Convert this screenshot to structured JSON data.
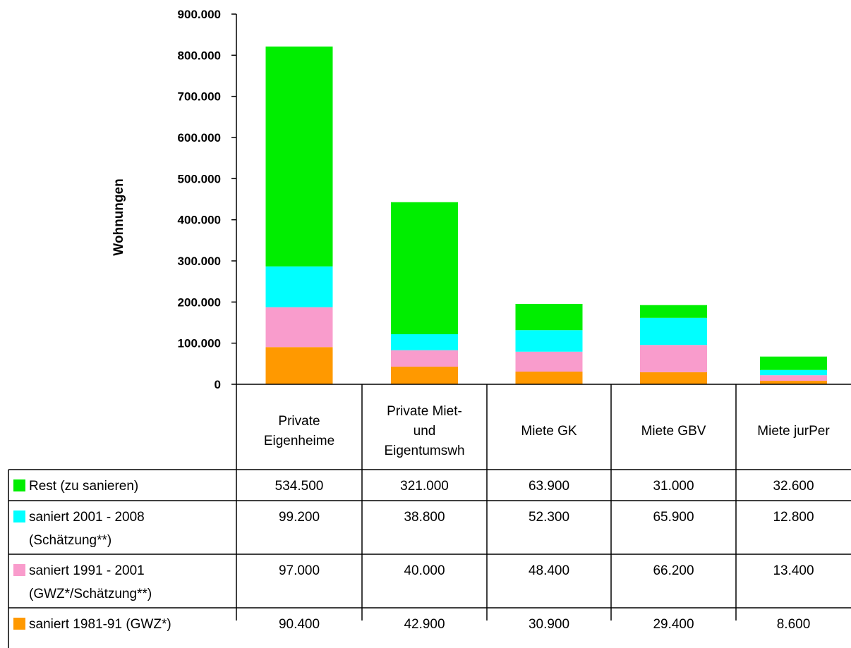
{
  "chart_data": {
    "type": "bar",
    "stacked": true,
    "ylabel": "Wohnungen",
    "ylim": [
      0,
      900000
    ],
    "yticks": [
      0,
      100000,
      200000,
      300000,
      400000,
      500000,
      600000,
      700000,
      800000,
      900000
    ],
    "ytick_labels": [
      "0",
      "100.000",
      "200.000",
      "300.000",
      "400.000",
      "500.000",
      "600.000",
      "700.000",
      "800.000",
      "900.000"
    ],
    "categories": [
      [
        "Private",
        "Eigenheime"
      ],
      [
        "Private Miet-",
        "und",
        "Eigentumswh"
      ],
      [
        "Miete GK"
      ],
      [
        "Miete GBV"
      ],
      [
        "Miete jurPer"
      ]
    ],
    "legend_placement": "data-table",
    "series": [
      {
        "name": [
          "Rest (zu sanieren)"
        ],
        "color": "#00ee00",
        "values": [
          534500,
          321000,
          63900,
          31000,
          32600
        ],
        "labels": [
          "534.500",
          "321.000",
          "63.900",
          "31.000",
          "32.600"
        ]
      },
      {
        "name": [
          "saniert 2001 - 2008",
          "(Schätzung**)"
        ],
        "color": "#00ffff",
        "values": [
          99200,
          38800,
          52300,
          65900,
          12800
        ],
        "labels": [
          "99.200",
          "38.800",
          "52.300",
          "65.900",
          "12.800"
        ]
      },
      {
        "name": [
          "saniert 1991 - 2001",
          "(GWZ*/Schätzung**)"
        ],
        "color": "#f99ccc",
        "values": [
          97000,
          40000,
          48400,
          66200,
          13400
        ],
        "labels": [
          "97.000",
          "40.000",
          "48.400",
          "66.200",
          "13.400"
        ]
      },
      {
        "name": [
          "saniert 1981-91 (GWZ*)"
        ],
        "color": "#ff9900",
        "values": [
          90400,
          42900,
          30900,
          29400,
          8600
        ],
        "labels": [
          "90.400",
          "42.900",
          "30.900",
          "29.400",
          "8.600"
        ]
      }
    ]
  }
}
